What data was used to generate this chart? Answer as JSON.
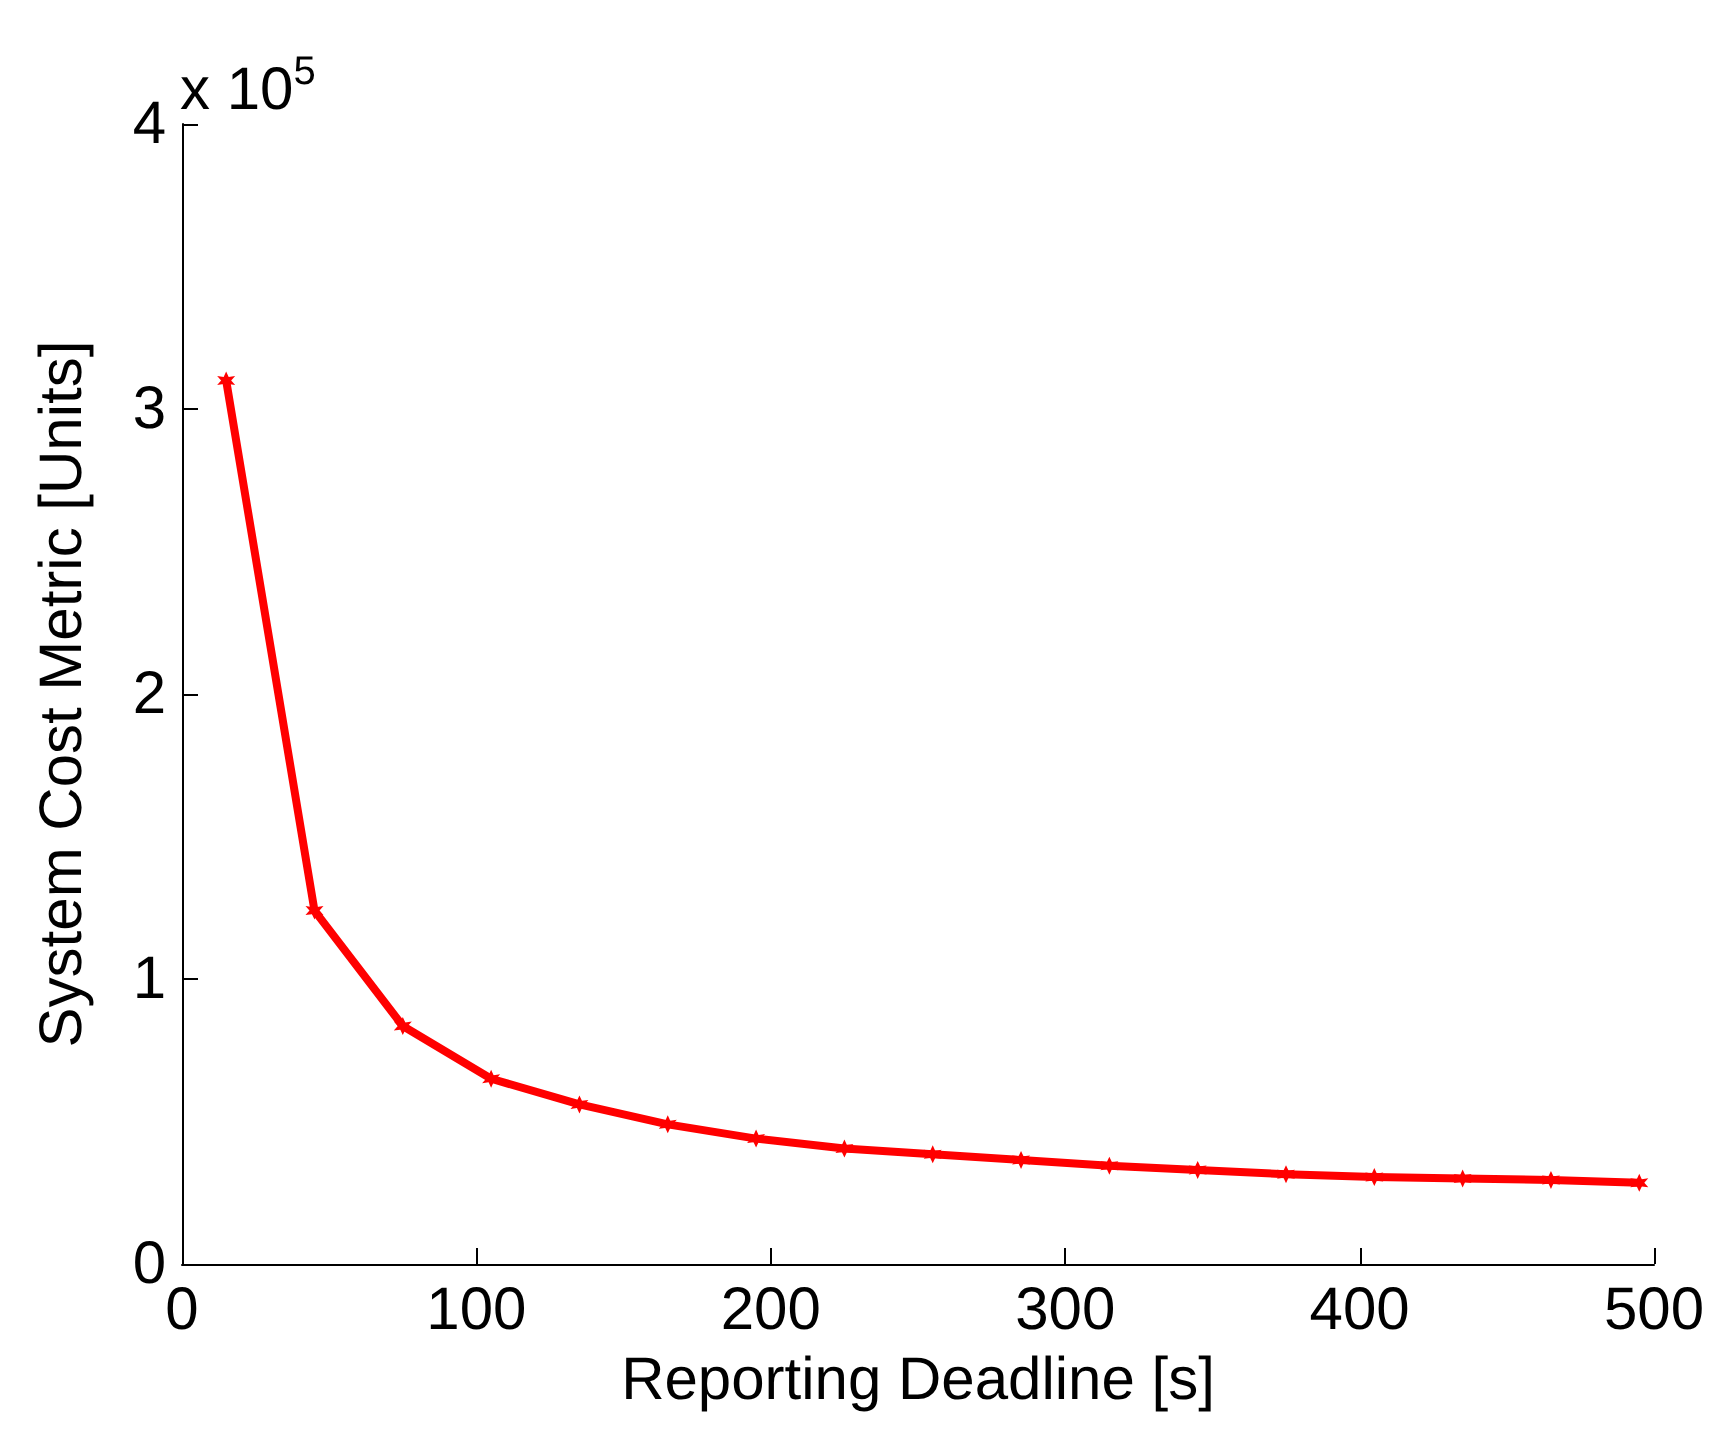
{
  "chart_data": {
    "type": "line",
    "xlabel": "Reporting Deadline [s]",
    "ylabel": "System Cost Metric [Units]",
    "annotations": [
      "x 10$^{5}$"
    ],
    "x": [
      15,
      45,
      75,
      105,
      135,
      165,
      195,
      225,
      255,
      285,
      315,
      345,
      375,
      405,
      435,
      465,
      495
    ],
    "series": [
      {
        "color": "#ff0000",
        "values": [
          3.1,
          1.24,
          0.835,
          0.65,
          0.56,
          0.49,
          0.44,
          0.405,
          0.385,
          0.365,
          0.345,
          0.33,
          0.315,
          0.305,
          0.3,
          0.295,
          0.285
        ]
      }
    ],
    "xlim": [
      0,
      500
    ],
    "xticks": [
      0,
      100,
      200,
      300,
      400,
      500
    ],
    "ylim": [
      0,
      4
    ],
    "yticks": [
      0,
      1,
      2,
      3,
      4
    ],
    "grid": false,
    "marker": "cross",
    "line_style": "solid"
  }
}
